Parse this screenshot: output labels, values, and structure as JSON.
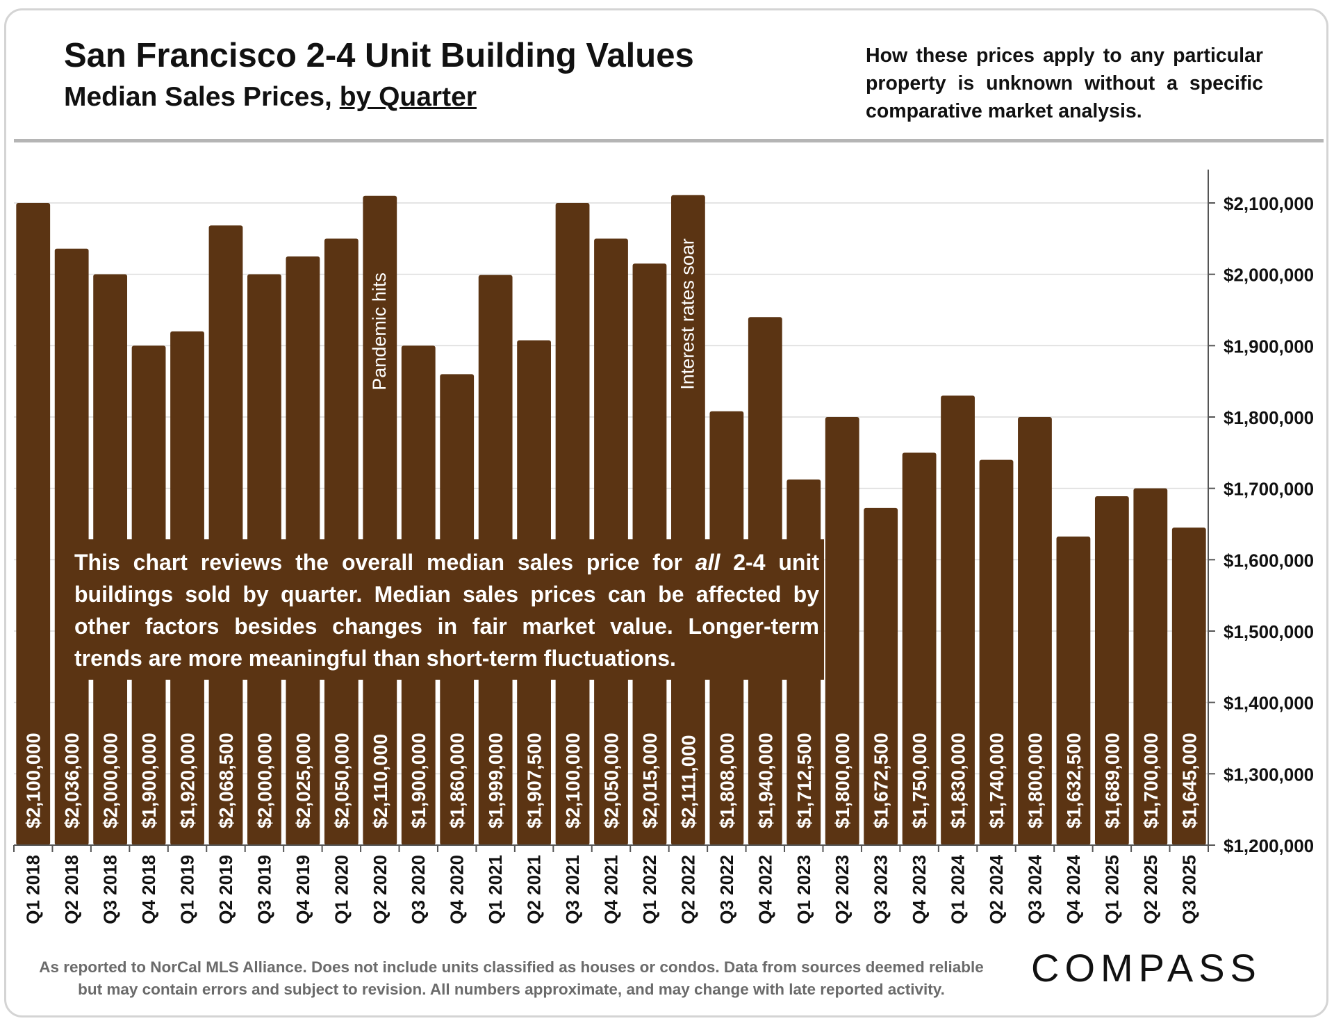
{
  "header": {
    "title": "San Francisco 2-4 Unit Building Values",
    "subtitle_prefix": "Median Sales Prices,",
    "subtitle_link": "by Quarter",
    "disclaimer": "How these prices apply to any particular property is unknown without a specific comparative market analysis."
  },
  "note": {
    "before": "This chart reviews the overall median sales price for ",
    "emphasis": "all",
    "after": " 2-4 unit buildings sold by quarter. Median sales prices can be affected by other factors besides changes in fair market value. Longer-term trends are more meaningful than short-term fluctuations."
  },
  "footer": {
    "line1": "As reported to NorCal MLS Alliance. Does not include units classified as houses or condos. Data from sources deemed reliable",
    "line2": "but may contain errors and subject to revision. All numbers approximate, and may change with late reported activity."
  },
  "logo": {
    "text": "COMPASS"
  },
  "colors": {
    "bar": "#5b3413",
    "label": "#ffffff",
    "grid": "#dcdcdc",
    "axis": "#555555",
    "text": "#111111"
  },
  "chart_data": {
    "type": "bar",
    "title": "San Francisco 2-4 Unit Building Values",
    "subtitle": "Median Sales Prices, by Quarter",
    "xlabel": "",
    "ylabel": "",
    "ylim": [
      1200000,
      2100000
    ],
    "y_axis_position": "right",
    "grid": true,
    "yticks": [
      1200000,
      1300000,
      1400000,
      1500000,
      1600000,
      1700000,
      1800000,
      1900000,
      2000000,
      2100000
    ],
    "ytick_labels": [
      "$1,200,000",
      "$1,300,000",
      "$1,400,000",
      "$1,500,000",
      "$1,600,000",
      "$1,700,000",
      "$1,800,000",
      "$1,900,000",
      "$2,000,000",
      "$2,100,000"
    ],
    "categories": [
      "Q1 2018",
      "Q2 2018",
      "Q3 2018",
      "Q4 2018",
      "Q1 2019",
      "Q2 2019",
      "Q3 2019",
      "Q4 2019",
      "Q1 2020",
      "Q2 2020",
      "Q3 2020",
      "Q4 2020",
      "Q1 2021",
      "Q2 2021",
      "Q3 2021",
      "Q4 2021",
      "Q1 2022",
      "Q2 2022",
      "Q3 2022",
      "Q4 2022",
      "Q1 2023",
      "Q2 2023",
      "Q3 2023",
      "Q4 2023",
      "Q1 2024",
      "Q2 2024",
      "Q3 2024",
      "Q4 2024",
      "Q1 2025",
      "Q2 2025",
      "Q3 2025"
    ],
    "values": [
      2100000,
      2036000,
      2000000,
      1900000,
      1920000,
      2068500,
      2000000,
      2025000,
      2050000,
      2110000,
      1900000,
      1860000,
      1999000,
      1907500,
      2100000,
      2050000,
      2015000,
      2111000,
      1808000,
      1940000,
      1712500,
      1800000,
      1672500,
      1750000,
      1830000,
      1740000,
      1800000,
      1632500,
      1689000,
      1700000,
      1645000
    ],
    "value_labels": [
      "$2,100,000",
      "$2,036,000",
      "$2,000,000",
      "$1,900,000",
      "$1,920,000",
      "$2,068,500",
      "$2,000,000",
      "$2,025,000",
      "$2,050,000",
      "$2,110,000",
      "$1,900,000",
      "$1,860,000",
      "$1,999,000",
      "$1,907,500",
      "$2,100,000",
      "$2,050,000",
      "$2,015,000",
      "$2,111,000",
      "$1,808,000",
      "$1,940,000",
      "$1,712,500",
      "$1,800,000",
      "$1,672,500",
      "$1,750,000",
      "$1,830,000",
      "$1,740,000",
      "$1,800,000",
      "$1,632,500",
      "$1,689,000",
      "$1,700,000",
      "$1,645,000"
    ],
    "annotations": [
      {
        "category": "Q2 2020",
        "text": "Pandemic hits"
      },
      {
        "category": "Q2 2022",
        "text": "Interest rates soar"
      }
    ]
  }
}
